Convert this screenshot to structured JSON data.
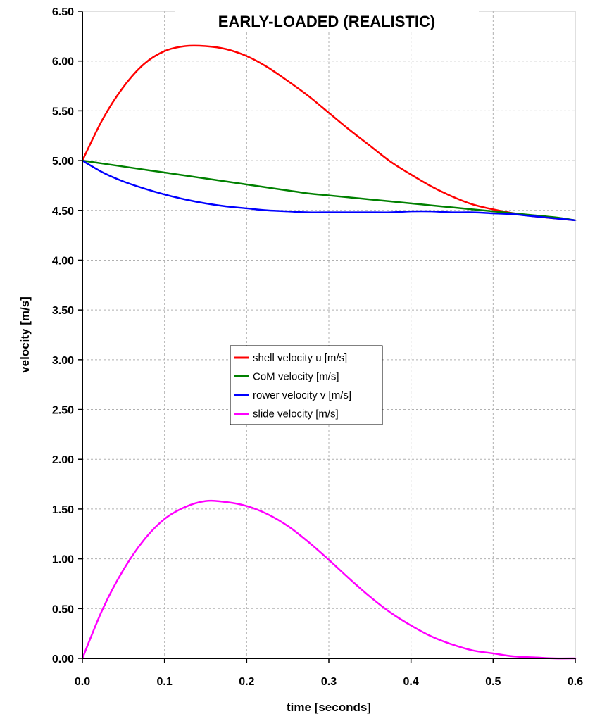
{
  "chart_data": {
    "type": "line",
    "title": "EARLY-LOADED (REALISTIC)",
    "xlabel": "time [seconds]",
    "ylabel": "velocity [m/s]",
    "xlim": [
      0,
      0.6
    ],
    "ylim": [
      0,
      6.5
    ],
    "x_ticks": [
      "0.0",
      "0.1",
      "0.2",
      "0.3",
      "0.4",
      "0.5",
      "0.6"
    ],
    "y_ticks": [
      "0.00",
      "0.50",
      "1.00",
      "1.50",
      "2.00",
      "2.50",
      "3.00",
      "3.50",
      "4.00",
      "4.50",
      "5.00",
      "5.50",
      "6.00",
      "6.50"
    ],
    "grid": true,
    "legend_position": "center-left",
    "x": [
      0.0,
      0.025,
      0.05,
      0.075,
      0.1,
      0.125,
      0.15,
      0.175,
      0.2,
      0.225,
      0.25,
      0.275,
      0.3,
      0.325,
      0.35,
      0.375,
      0.4,
      0.425,
      0.45,
      0.475,
      0.5,
      0.525,
      0.55,
      0.575,
      0.6
    ],
    "series": [
      {
        "name": "shell velocity u [m/s]",
        "color": "#ff0000",
        "values": [
          5.0,
          5.42,
          5.74,
          5.97,
          6.1,
          6.15,
          6.15,
          6.12,
          6.05,
          5.94,
          5.8,
          5.65,
          5.48,
          5.31,
          5.15,
          4.99,
          4.86,
          4.74,
          4.64,
          4.56,
          4.51,
          4.47,
          4.44,
          4.42,
          4.4
        ]
      },
      {
        "name": "CoM velocity [m/s]",
        "color": "#008000",
        "values": [
          5.0,
          4.97,
          4.94,
          4.91,
          4.88,
          4.85,
          4.82,
          4.79,
          4.76,
          4.73,
          4.7,
          4.67,
          4.65,
          4.63,
          4.61,
          4.59,
          4.57,
          4.55,
          4.53,
          4.51,
          4.49,
          4.47,
          4.45,
          4.43,
          4.4
        ]
      },
      {
        "name": "rower velocity v [m/s]",
        "color": "#0000ff",
        "values": [
          5.0,
          4.88,
          4.79,
          4.72,
          4.66,
          4.61,
          4.57,
          4.54,
          4.52,
          4.5,
          4.49,
          4.48,
          4.48,
          4.48,
          4.48,
          4.48,
          4.49,
          4.49,
          4.48,
          4.48,
          4.47,
          4.46,
          4.44,
          4.42,
          4.4
        ]
      },
      {
        "name": "slide velocity [m/s]",
        "color": "#ff00ff",
        "values": [
          0.0,
          0.5,
          0.89,
          1.19,
          1.4,
          1.52,
          1.58,
          1.57,
          1.53,
          1.45,
          1.33,
          1.17,
          0.99,
          0.8,
          0.62,
          0.46,
          0.33,
          0.22,
          0.14,
          0.08,
          0.05,
          0.02,
          0.01,
          0.0,
          0.0
        ]
      }
    ]
  }
}
